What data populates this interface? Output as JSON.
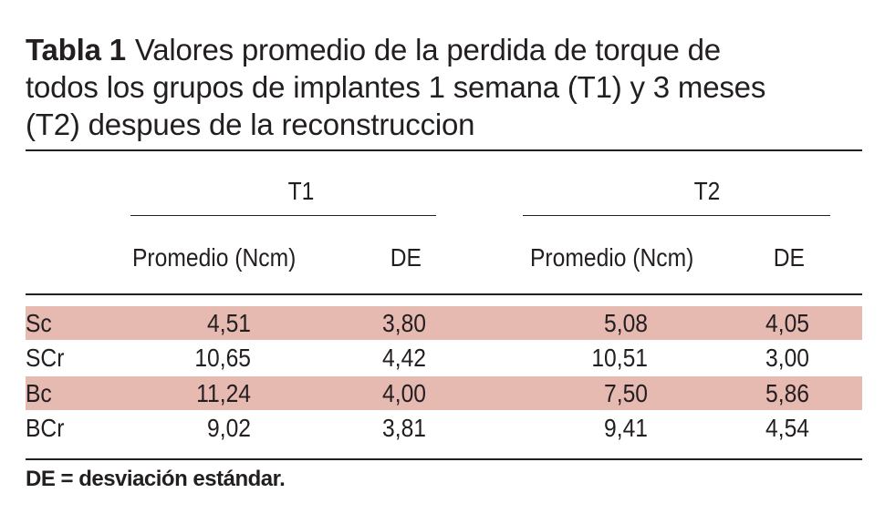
{
  "table": {
    "number": "Tabla 1",
    "caption_line1": "Valores promedio de la perdida de torque de",
    "caption_line2": "todos los grupos de implantes 1 semana (T1) y 3 meses",
    "caption_line3": "(T2) despues de la reconstruccion",
    "groups": [
      "T1",
      "T2"
    ],
    "columns": [
      "Promedio (Ncm)",
      "DE",
      "Promedio (Ncm)",
      "DE"
    ],
    "rows": [
      {
        "label": "Sc",
        "t1_mean": "4,51",
        "t1_de": "3,80",
        "t2_mean": "5,08",
        "t2_de": "4,05",
        "highlight": true
      },
      {
        "label": "SCr",
        "t1_mean": "10,65",
        "t1_de": "4,42",
        "t2_mean": "10,51",
        "t2_de": "3,00",
        "highlight": false
      },
      {
        "label": "Bc",
        "t1_mean": "11,24",
        "t1_de": "4,00",
        "t2_mean": "7,50",
        "t2_de": "5,86",
        "highlight": true
      },
      {
        "label": "BCr",
        "t1_mean": "9,02",
        "t1_de": "3,81",
        "t2_mean": "9,41",
        "t2_de": "4,54",
        "highlight": false
      }
    ],
    "footnote": "DE = desviación estándar.",
    "highlight_color": "#e6b9b1"
  }
}
